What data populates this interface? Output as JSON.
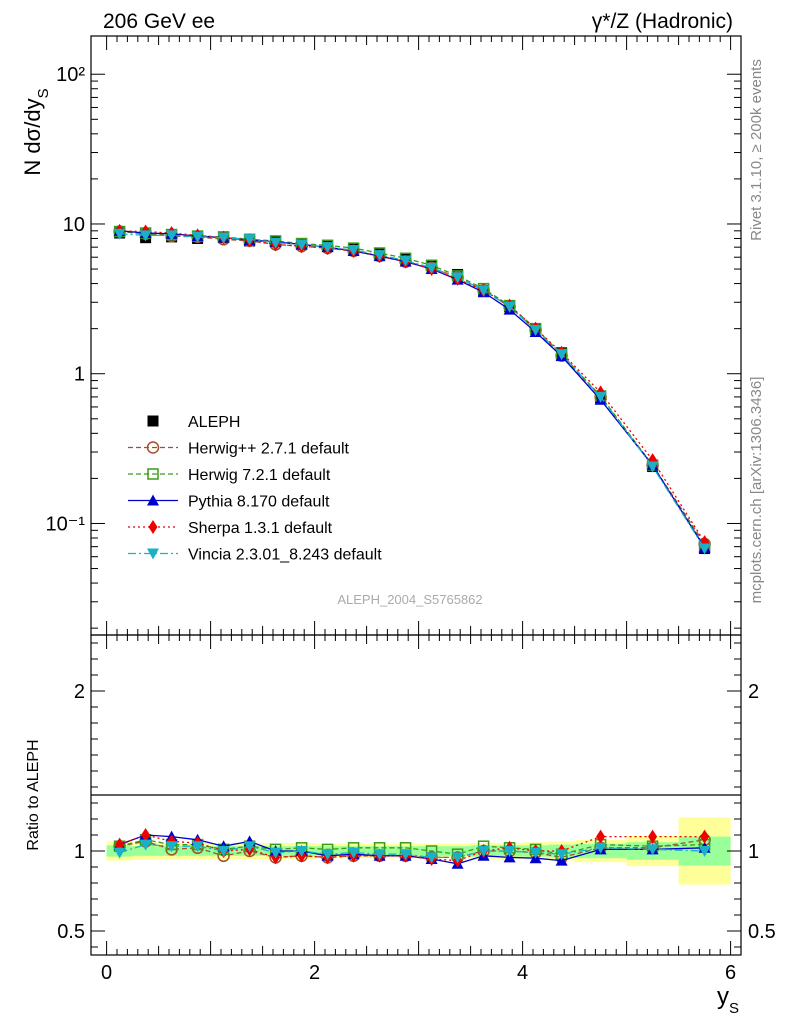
{
  "header": {
    "left_title": "206 GeV ee",
    "right_title": "γ*/Z (Hadronic)"
  },
  "side_labels": {
    "rivet": "Rivet 3.1.10, ≥ 200k events",
    "mcplots": "mcplots.cern.ch [arXiv:1306.3436]"
  },
  "watermark": "ALEPH_2004_S5765862",
  "colors": {
    "data": "#000000",
    "herwigpp": "#a0522d",
    "herwig7": "#3a9a1a",
    "pythia": "#0000cc",
    "sherpa": "#ee0000",
    "vincia": "#1ab0c8",
    "band_inner": "#99ff99",
    "band_outer": "#ffff99"
  },
  "chart_data": [
    {
      "type": "line",
      "panel": "main",
      "yscale": "log",
      "ylabel": "N dσ/dy",
      "ylabel_sub": "S",
      "xlim": [
        -0.15,
        6.1
      ],
      "ylim": [
        0.018,
        180
      ],
      "y_tick_labels": [
        "10⁻¹",
        "1",
        "10",
        "10²"
      ],
      "x": [
        0.125,
        0.375,
        0.625,
        0.875,
        1.125,
        1.375,
        1.625,
        1.875,
        2.125,
        2.375,
        2.625,
        2.875,
        3.125,
        3.375,
        3.625,
        3.875,
        4.125,
        4.375,
        4.75,
        5.25,
        5.75
      ],
      "data": {
        "name": "ALEPH",
        "values": [
          8.7,
          8.1,
          8.2,
          8.0,
          8.1,
          7.7,
          7.6,
          7.3,
          7.2,
          6.8,
          6.3,
          5.8,
          5.3,
          4.6,
          3.6,
          2.8,
          1.98,
          1.38,
          0.69,
          0.24,
          0.068
        ]
      },
      "series": [
        {
          "name": "Herwig++ 2.7.1 default",
          "key": "herwigpp",
          "values": [
            8.9,
            8.6,
            8.3,
            8.2,
            7.9,
            7.7,
            7.3,
            7.1,
            6.9,
            6.6,
            6.1,
            5.6,
            5.1,
            4.4,
            3.6,
            2.8,
            1.96,
            1.32,
            0.7,
            0.245,
            0.073
          ]
        },
        {
          "name": "Herwig 7.2.1 default",
          "key": "herwig7",
          "values": [
            8.9,
            8.7,
            8.5,
            8.3,
            8.2,
            7.9,
            7.7,
            7.4,
            7.2,
            6.9,
            6.4,
            5.9,
            5.3,
            4.5,
            3.7,
            2.85,
            2.0,
            1.35,
            0.71,
            0.245,
            0.07
          ]
        },
        {
          "name": "Pythia 8.170 default",
          "key": "pythia",
          "values": [
            9.0,
            8.7,
            8.6,
            8.3,
            8.1,
            7.8,
            7.6,
            7.3,
            7.0,
            6.6,
            6.1,
            5.6,
            5.0,
            4.25,
            3.5,
            2.68,
            1.9,
            1.31,
            0.67,
            0.245,
            0.069
          ]
        },
        {
          "name": "Sherpa 1.3.1 default",
          "key": "sherpa",
          "values": [
            9.0,
            8.9,
            8.7,
            8.4,
            8.1,
            7.8,
            7.3,
            7.1,
            6.9,
            6.6,
            6.1,
            5.6,
            5.0,
            4.3,
            3.6,
            2.85,
            2.0,
            1.38,
            0.75,
            0.265,
            0.075
          ]
        },
        {
          "name": "Vincia 2.3.01_8.243 default",
          "key": "vincia",
          "values": [
            8.6,
            8.4,
            8.4,
            8.2,
            8.1,
            7.9,
            7.5,
            7.3,
            7.0,
            6.7,
            6.2,
            5.7,
            5.1,
            4.4,
            3.6,
            2.8,
            1.96,
            1.35,
            0.7,
            0.24,
            0.068
          ]
        }
      ]
    },
    {
      "type": "line",
      "panel": "ratio",
      "ylabel": "Ratio to ALEPH",
      "xlabel": "y",
      "xlabel_sub": "S",
      "xlim": [
        -0.15,
        6.1
      ],
      "ylim": [
        0.35,
        2.35
      ],
      "x_ticks": [
        0,
        2,
        4,
        6
      ],
      "y_tick_labels": [
        "0.5",
        "1",
        "2"
      ],
      "y_tick_values": [
        0.5,
        1,
        2
      ],
      "x": [
        0.125,
        0.375,
        0.625,
        0.875,
        1.125,
        1.375,
        1.625,
        1.875,
        2.125,
        2.375,
        2.625,
        2.875,
        3.125,
        3.375,
        3.625,
        3.875,
        4.125,
        4.375,
        4.75,
        5.25,
        5.75
      ],
      "x_edges": [
        0,
        0.25,
        0.5,
        0.75,
        1.0,
        1.25,
        1.5,
        1.75,
        2.0,
        2.25,
        2.5,
        2.75,
        3.0,
        3.25,
        3.5,
        3.75,
        4.0,
        4.25,
        4.5,
        5.0,
        5.5,
        6.0
      ],
      "band_inner": [
        0.035,
        0.03,
        0.03,
        0.03,
        0.03,
        0.03,
        0.03,
        0.03,
        0.03,
        0.03,
        0.03,
        0.03,
        0.03,
        0.03,
        0.035,
        0.035,
        0.035,
        0.04,
        0.045,
        0.055,
        0.09
      ],
      "band_outer": [
        0.06,
        0.055,
        0.05,
        0.05,
        0.05,
        0.05,
        0.05,
        0.05,
        0.045,
        0.045,
        0.045,
        0.045,
        0.045,
        0.045,
        0.05,
        0.05,
        0.055,
        0.06,
        0.07,
        0.095,
        0.21
      ],
      "series": [
        {
          "name": "Herwig++ 2.7.1 default",
          "key": "herwigpp",
          "values": [
            1.03,
            1.06,
            1.01,
            1.02,
            0.97,
            1.0,
            0.96,
            0.97,
            0.96,
            0.97,
            0.97,
            0.97,
            0.96,
            0.96,
            1.0,
            1.0,
            0.99,
            0.96,
            1.02,
            1.02,
            1.07
          ]
        },
        {
          "name": "Herwig 7.2.1 default",
          "key": "herwig7",
          "values": [
            1.03,
            1.07,
            1.04,
            1.04,
            1.01,
            1.03,
            1.01,
            1.02,
            1.01,
            1.02,
            1.02,
            1.02,
            1.0,
            0.98,
            1.03,
            1.02,
            1.01,
            0.98,
            1.04,
            1.03,
            1.04
          ]
        },
        {
          "name": "Pythia 8.170 default",
          "key": "pythia",
          "values": [
            1.04,
            1.1,
            1.09,
            1.07,
            1.03,
            1.06,
            1.0,
            1.0,
            0.97,
            0.98,
            0.97,
            0.97,
            0.95,
            0.92,
            0.97,
            0.96,
            0.955,
            0.94,
            1.01,
            1.01,
            1.02
          ]
        },
        {
          "name": "Sherpa 1.3.1 default",
          "key": "sherpa",
          "values": [
            1.04,
            1.1,
            1.06,
            1.05,
            1.0,
            1.01,
            0.96,
            0.97,
            0.96,
            0.97,
            0.97,
            0.97,
            0.95,
            0.94,
            1.0,
            1.02,
            1.0,
            1.0,
            1.09,
            1.09,
            1.09
          ]
        },
        {
          "name": "Vincia 2.3.01_8.243 default",
          "key": "vincia",
          "values": [
            0.99,
            1.04,
            1.03,
            1.03,
            1.0,
            1.03,
            0.99,
            1.0,
            0.98,
            0.99,
            0.98,
            0.98,
            0.96,
            0.96,
            1.0,
            1.0,
            0.99,
            0.98,
            1.02,
            1.01,
            1.0
          ]
        }
      ]
    }
  ]
}
